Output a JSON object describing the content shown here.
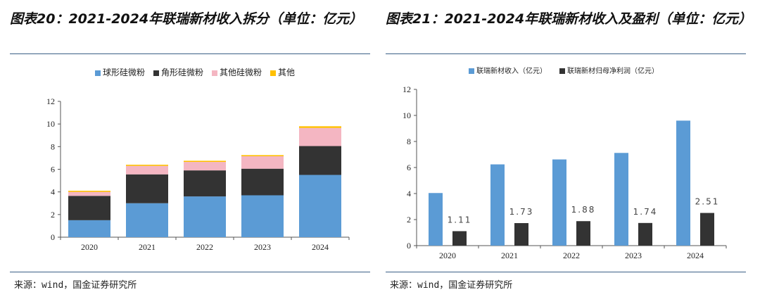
{
  "charts": [
    {
      "title": "图表20：2021-2024年联瑞新材收入拆分（单位：亿元）",
      "source": "来源：wind，国金证券研究所"
    },
    {
      "title": "图表21：2021-2024年联瑞新材收入及盈利（单位：亿元）",
      "source": "来源：wind，国金证券研究所"
    }
  ],
  "chart_data": [
    {
      "type": "bar",
      "stacked": true,
      "title": "图表20：2021-2024年联瑞新材收入拆分（单位：亿元）",
      "categories": [
        "2020",
        "2021",
        "2022",
        "2023",
        "2024"
      ],
      "series": [
        {
          "name": "球形硅微粉",
          "color": "#5b9bd5",
          "values": [
            1.5,
            3.0,
            3.6,
            3.7,
            5.5
          ]
        },
        {
          "name": "角形硅微粉",
          "color": "#333333",
          "values": [
            2.15,
            2.55,
            2.3,
            2.35,
            2.55
          ]
        },
        {
          "name": "其他硅微粉",
          "color": "#f4b6c2",
          "values": [
            0.35,
            0.75,
            0.75,
            1.1,
            1.6
          ]
        },
        {
          "name": "其他",
          "color": "#ffc000",
          "values": [
            0.1,
            0.1,
            0.1,
            0.1,
            0.15
          ]
        }
      ],
      "ylim": [
        0,
        12
      ],
      "yticks": [
        "0",
        "2",
        "4",
        "6",
        "8",
        "10",
        "12"
      ],
      "legend": "top"
    },
    {
      "type": "bar",
      "stacked": false,
      "title": "图表21：2021-2024年联瑞新材收入及盈利（单位：亿元）",
      "categories": [
        "2020",
        "2021",
        "2022",
        "2023",
        "2024"
      ],
      "series": [
        {
          "name": "联瑞新材收入（亿元）",
          "color": "#5b9bd5",
          "values": [
            4.04,
            6.24,
            6.62,
            7.12,
            9.6
          ],
          "labels": [
            "",
            "",
            "",
            "",
            ""
          ]
        },
        {
          "name": "联瑞新材归母净利润（亿元）",
          "color": "#333333",
          "values": [
            1.11,
            1.73,
            1.88,
            1.74,
            2.51
          ],
          "labels": [
            "1.11",
            "1.73",
            "1.88",
            "1.74",
            "2.51"
          ]
        }
      ],
      "ylim": [
        0,
        12
      ],
      "yticks": [
        "0",
        "2",
        "4",
        "6",
        "8",
        "10",
        "12"
      ],
      "legend": "top"
    }
  ]
}
